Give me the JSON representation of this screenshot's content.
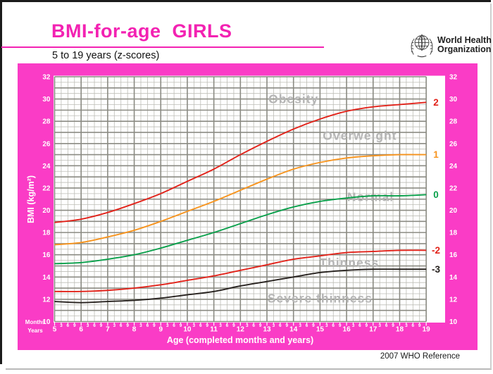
{
  "header": {
    "title": "BMI-for-age  GIRLS",
    "subtitle": "5 to 19 years (z-scores)",
    "logo": {
      "line1": "World Health",
      "line2": "Organization"
    }
  },
  "chart": {
    "y_axis_title": "BMI (kg/m²)",
    "x_axis_title": "Age (completed months and years)",
    "row_labels": {
      "months": "Months",
      "years": "Years"
    }
  },
  "chart_data": {
    "type": "line",
    "title": "BMI-for-age GIRLS, 5 to 19 years (z-scores)",
    "xlabel": "Age (completed months and years)",
    "ylabel": "BMI (kg/m²)",
    "x_years": [
      5,
      6,
      7,
      8,
      9,
      10,
      11,
      12,
      13,
      14,
      15,
      16,
      17,
      18,
      19
    ],
    "x_minor_months": [
      3,
      6,
      9
    ],
    "y_ticks": [
      10,
      12,
      14,
      16,
      18,
      20,
      22,
      24,
      26,
      28,
      30,
      32
    ],
    "ylim": [
      10,
      32
    ],
    "xlim_years": [
      5,
      19
    ],
    "grid": "on",
    "series": [
      {
        "name": "+2 SD",
        "z_label": "2",
        "color": "#e2231a",
        "values": [
          18.9,
          19.2,
          19.8,
          20.6,
          21.5,
          22.6,
          23.7,
          25.0,
          26.2,
          27.3,
          28.2,
          28.9,
          29.3,
          29.5,
          29.7
        ]
      },
      {
        "name": "+1 SD",
        "z_label": "1",
        "color": "#f7941e",
        "values": [
          16.9,
          17.1,
          17.6,
          18.2,
          19.0,
          19.9,
          20.8,
          21.8,
          22.8,
          23.7,
          24.3,
          24.7,
          24.9,
          25.0,
          25.0
        ]
      },
      {
        "name": "0 (median)",
        "z_label": "0",
        "color": "#0aa04b",
        "values": [
          15.2,
          15.3,
          15.6,
          16.0,
          16.6,
          17.3,
          18.0,
          18.8,
          19.6,
          20.3,
          20.8,
          21.1,
          21.3,
          21.3,
          21.4
        ]
      },
      {
        "name": "-2 SD",
        "z_label": "-2",
        "color": "#e2231a",
        "values": [
          12.7,
          12.7,
          12.8,
          13.0,
          13.3,
          13.7,
          14.1,
          14.6,
          15.1,
          15.6,
          15.9,
          16.2,
          16.3,
          16.4,
          16.4
        ]
      },
      {
        "name": "-3 SD",
        "z_label": "-3",
        "color": "#27221f",
        "values": [
          11.8,
          11.7,
          11.8,
          11.9,
          12.1,
          12.4,
          12.7,
          13.2,
          13.6,
          14.0,
          14.4,
          14.6,
          14.7,
          14.7,
          14.7
        ]
      }
    ],
    "zone_labels": [
      {
        "text": "Obesity",
        "age": 14.0,
        "bmi": 30.0
      },
      {
        "text": "Overweight",
        "age": 16.5,
        "bmi": 26.7
      },
      {
        "text": "Normal",
        "age": 16.9,
        "bmi": 21.2
      },
      {
        "text": "Thinness",
        "age": 16.1,
        "bmi": 15.3
      },
      {
        "text": "Severe thinness",
        "age": 15.0,
        "bmi": 12.1
      }
    ]
  },
  "footer": {
    "reference": "2007 WHO Reference"
  }
}
